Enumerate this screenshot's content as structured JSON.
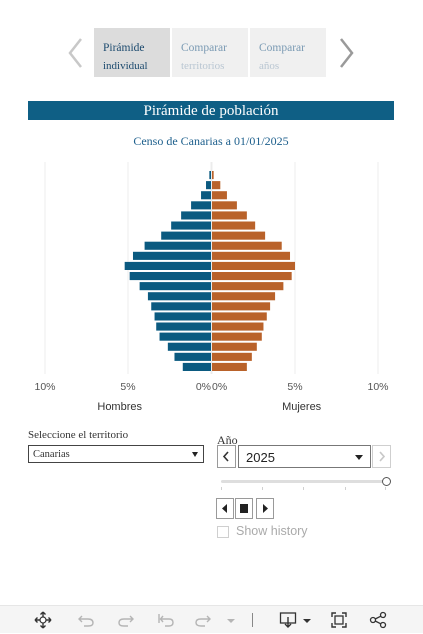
{
  "story_nav": {
    "tabs": [
      {
        "label": "Pirámide",
        "sub": "individual"
      },
      {
        "label": "Comparar",
        "sub": "territorios"
      },
      {
        "label": "Comparar",
        "sub": "años"
      }
    ]
  },
  "title": "Pirámide de población",
  "subtitle": "Censo de Canarias a 01/01/2025",
  "chart_data": {
    "type": "bar",
    "orientation": "horizontal-pyramid",
    "x_unit": "%",
    "left_axis": {
      "title": "Hombres",
      "ticks": [
        "10%",
        "5%",
        "0%"
      ],
      "range": [
        10,
        0
      ]
    },
    "right_axis": {
      "title": "Mujeres",
      "ticks": [
        "0%",
        "5%",
        "10%"
      ],
      "range": [
        0,
        10
      ]
    },
    "grid": true,
    "series": [
      {
        "name": "Hombres",
        "color": "#0b5a80",
        "values": [
          0.1,
          0.3,
          0.6,
          1.2,
          1.8,
          2.4,
          3.0,
          4.0,
          4.7,
          5.2,
          4.9,
          4.3,
          3.8,
          3.6,
          3.4,
          3.3,
          3.1,
          2.6,
          2.2,
          1.7
        ]
      },
      {
        "name": "Mujeres",
        "color": "#b9622a",
        "values": [
          0.1,
          0.5,
          0.9,
          1.5,
          2.1,
          2.6,
          3.2,
          4.2,
          4.7,
          5.0,
          4.8,
          4.3,
          3.8,
          3.5,
          3.3,
          3.1,
          3.0,
          2.7,
          2.4,
          2.1
        ]
      }
    ]
  },
  "controls": {
    "territory_label": "Seleccione el territorio",
    "territory_value": "Canarias",
    "year_label": "Año",
    "year_value": "2025",
    "year_slider_position": 1.0,
    "show_history_label": "Show history",
    "show_history_checked": false
  },
  "toolbar": {
    "icons": [
      "move-icon",
      "undo-icon",
      "redo-icon",
      "revert-icon",
      "pause-icon",
      "download-icon",
      "fullscreen-icon",
      "share-icon"
    ]
  },
  "colors": {
    "accent": "#0f5f85",
    "men": "#0b5a80",
    "women": "#b9622a"
  }
}
